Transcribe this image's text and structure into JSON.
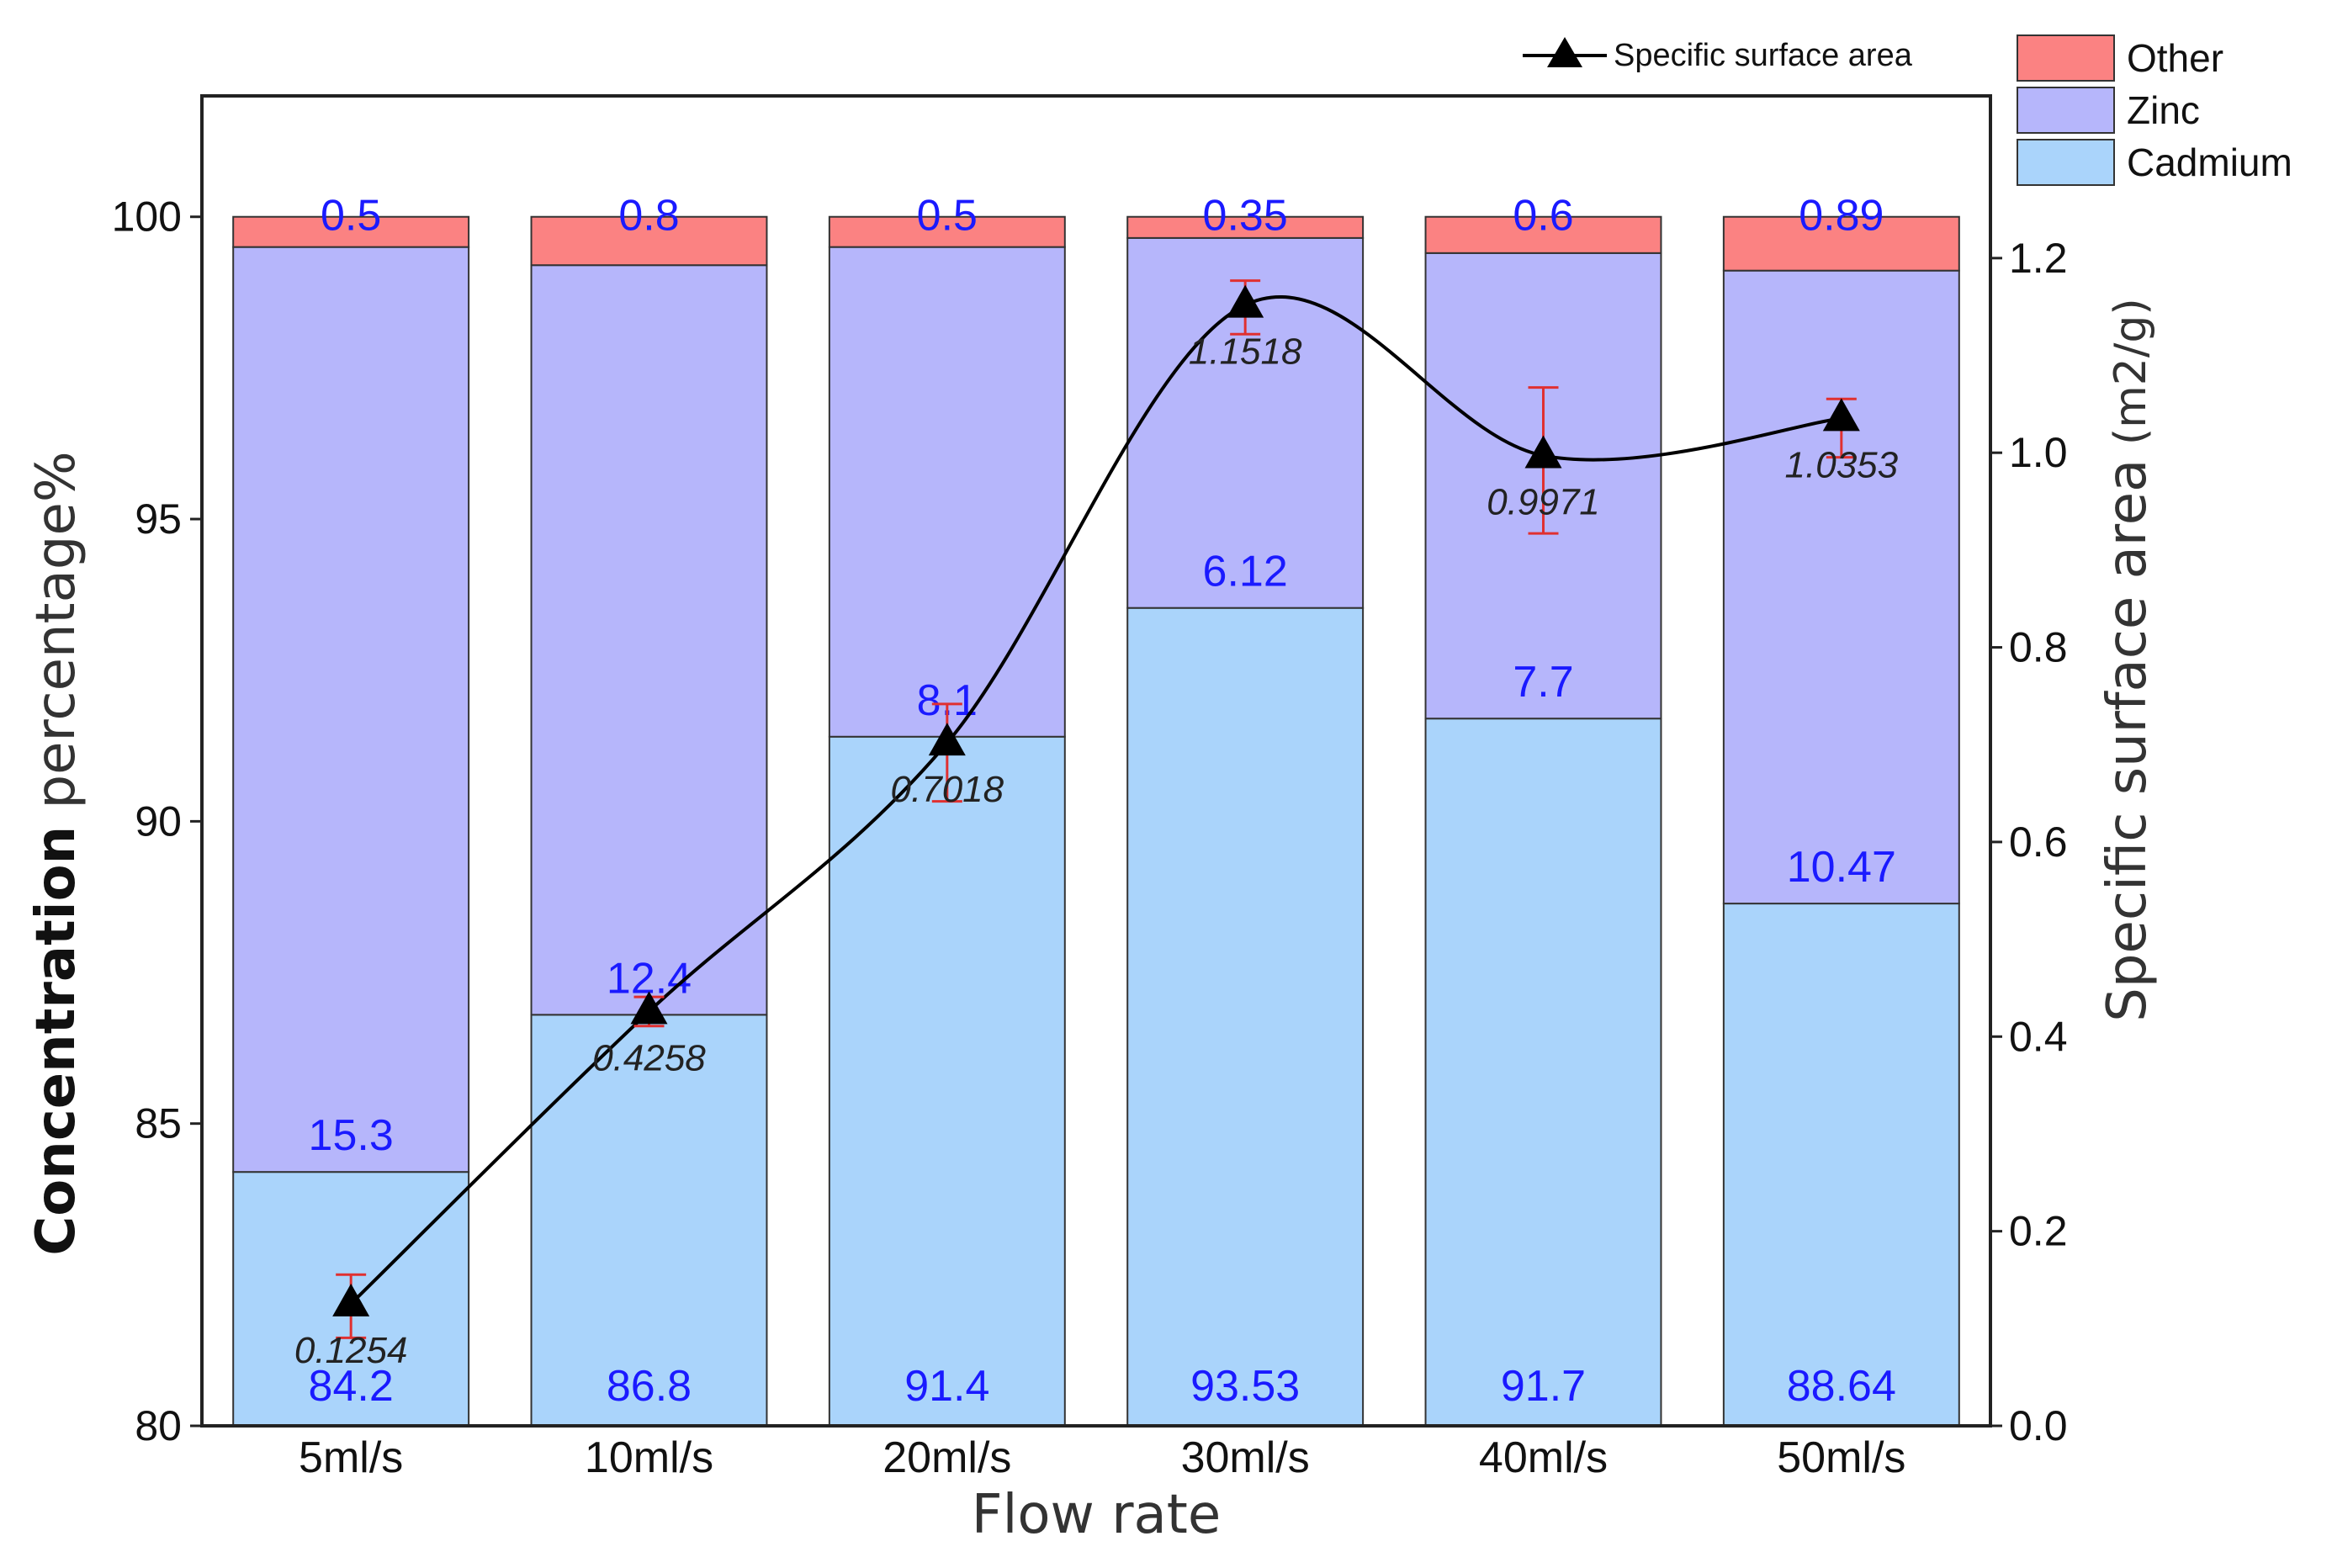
{
  "chart_data": {
    "type": "bar",
    "stacked": true,
    "categories": [
      "5ml/s",
      "10ml/s",
      "20ml/s",
      "30ml/s",
      "40ml/s",
      "50ml/s"
    ],
    "series": [
      {
        "name": "Cadmium",
        "values": [
          84.2,
          86.8,
          91.4,
          93.53,
          91.7,
          88.64
        ],
        "color": "#aad4fb"
      },
      {
        "name": "Zinc",
        "values": [
          15.3,
          12.4,
          8.1,
          6.12,
          7.7,
          10.47
        ],
        "color": "#b6b6fb"
      },
      {
        "name": "Other",
        "values": [
          0.5,
          0.8,
          0.5,
          0.35,
          0.6,
          0.89
        ],
        "color": "#fb8282"
      }
    ],
    "line_series": {
      "name": "Specific surface area",
      "type": "line",
      "axis": "right",
      "values": [
        0.1254,
        0.4258,
        0.7018,
        1.1518,
        0.9971,
        1.0353
      ],
      "labels": [
        "0.1254",
        "0.4258",
        "0.7018",
        "1.1518",
        "0.9971",
        "1.0353"
      ],
      "error_up": [
        0.03,
        0.015,
        0.04,
        0.025,
        0.07,
        0.02
      ],
      "error_down": [
        0.035,
        0.015,
        0.06,
        0.03,
        0.08,
        0.04
      ],
      "color": "#000000",
      "error_color": "#e03030"
    },
    "xlabel": "Flow rate",
    "ylabel_bold": "Concentration",
    "ylabel_rest": " percentage%",
    "y2label_main": "Specific surface area",
    "y2label_unit": " (m2/g)",
    "ylim": [
      80,
      102
    ],
    "y2lim": [
      0,
      1.3667
    ],
    "yticks": [
      80,
      85,
      90,
      95,
      100
    ],
    "y2ticks": [
      0.0,
      0.2,
      0.4,
      0.6,
      0.8,
      1.0,
      1.2
    ],
    "y2tick_labels": [
      "0.0",
      "0.2",
      "0.4",
      "0.6",
      "0.8",
      "1.0",
      "1.2"
    ],
    "legend_position": "top-right"
  }
}
